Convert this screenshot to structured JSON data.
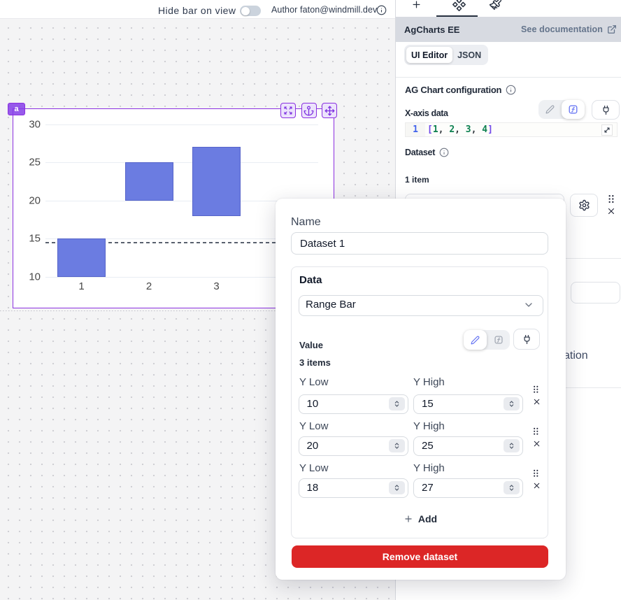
{
  "colors": {
    "selection_purple": "#8b30e0",
    "bar_fill": "#6b7ce1",
    "remove_red": "#dc2626",
    "link_slate": "#64748b",
    "active_indigo": "#5c6cf2",
    "panel_header_bg": "#d7dae1",
    "canvas_bg": "#f4f4f5"
  },
  "topbar": {
    "hide_bar_label": "Hide bar on view",
    "toggle_state": "off",
    "author_label": "Author faton@windmill.dev"
  },
  "component": {
    "badge": "a"
  },
  "chart_data": {
    "type": "range-bar",
    "categories": [
      1,
      2,
      3,
      4
    ],
    "series": [
      {
        "name": "Dataset 1",
        "items": [
          {
            "y_low": 10,
            "y_high": 15
          },
          {
            "y_low": 20,
            "y_high": 25
          },
          {
            "y_low": 18,
            "y_high": 27
          }
        ]
      }
    ],
    "yticks": [
      10,
      15,
      20,
      25,
      30
    ],
    "ylim": [
      10,
      30
    ],
    "grid": true,
    "bar_color": "#6b7ce1",
    "crosshair_y": 14.55,
    "title": "",
    "xlabel": "",
    "ylabel": ""
  },
  "panel": {
    "tabs": [
      {
        "icon": "plus-icon",
        "active": false
      },
      {
        "icon": "components-icon",
        "active": true
      },
      {
        "icon": "brush-icon",
        "active": false
      }
    ],
    "header": {
      "title": "AgCharts EE",
      "doc_link": "See documentation"
    },
    "subtabs": [
      {
        "label": "UI Editor",
        "active": true
      },
      {
        "label": "JSON",
        "active": false
      }
    ],
    "config_title": "AG Chart configuration",
    "xaxis": {
      "label": "X-axis data",
      "line_number": "1",
      "code_tokens": [
        {
          "text": "[",
          "color": "#7048e8"
        },
        {
          "text": "1",
          "color": "#0d8050"
        },
        {
          "text": ", ",
          "color": "#343a40"
        },
        {
          "text": "2",
          "color": "#0d8050"
        },
        {
          "text": ", ",
          "color": "#343a40"
        },
        {
          "text": "3",
          "color": "#0d8050"
        },
        {
          "text": ", ",
          "color": "#343a40"
        },
        {
          "text": "4",
          "color": "#0d8050"
        },
        {
          "text": "]",
          "color": "#7048e8"
        }
      ]
    },
    "dataset_label": "Dataset",
    "dataset_count": "1 item",
    "partial_text": "ation"
  },
  "modal": {
    "name_label": "Name",
    "name_value": "Dataset 1",
    "data_label": "Data",
    "data_value": "Range Bar",
    "value_label": "Value",
    "items_count": "3 items",
    "rows": [
      {
        "low_label": "Y Low",
        "low": "10",
        "high_label": "Y High",
        "high": "15"
      },
      {
        "low_label": "Y Low",
        "low": "20",
        "high_label": "Y High",
        "high": "25"
      },
      {
        "low_label": "Y Low",
        "low": "18",
        "high_label": "Y High",
        "high": "27"
      }
    ],
    "add_label": "Add",
    "remove_label": "Remove dataset"
  }
}
